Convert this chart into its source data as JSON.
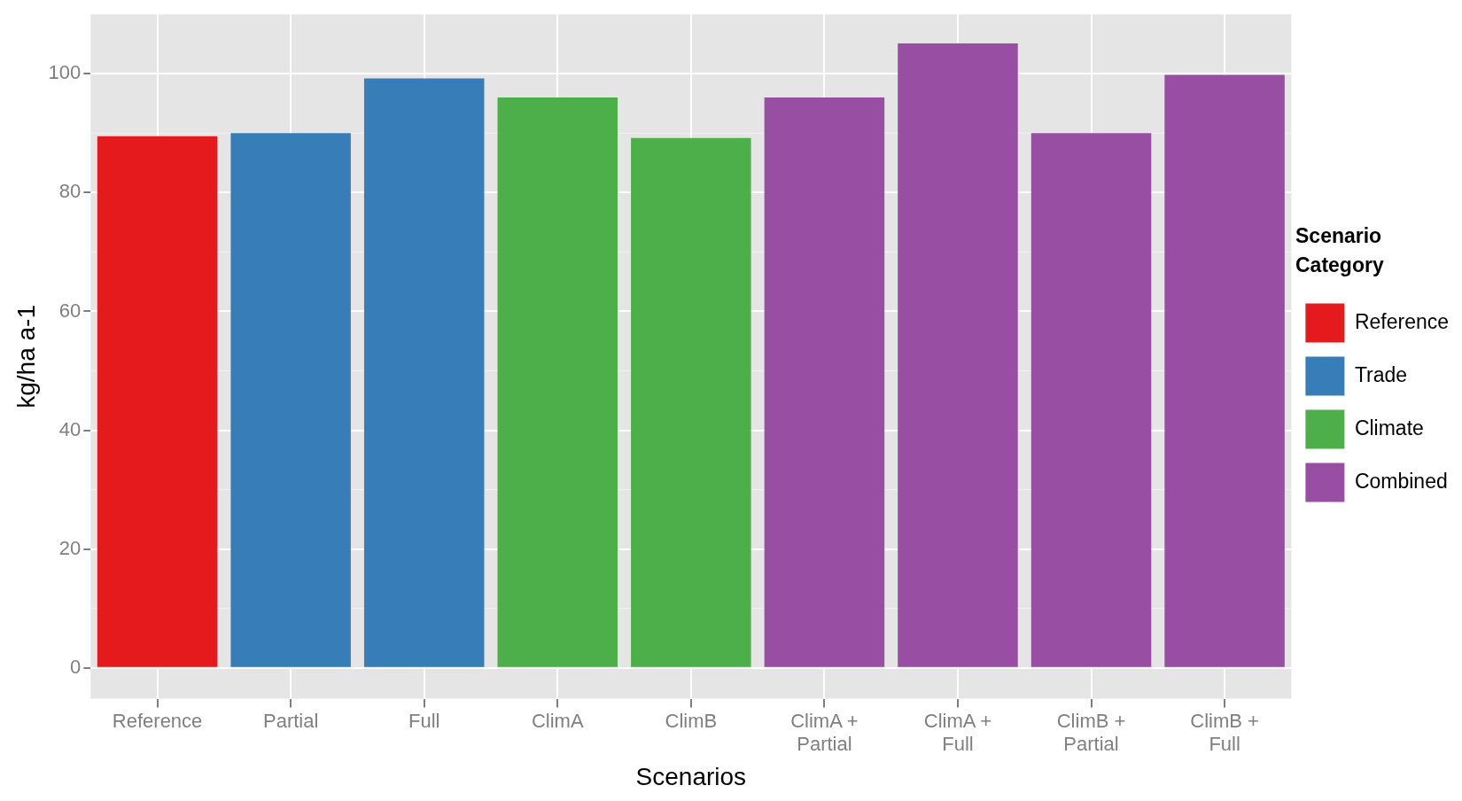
{
  "chart_data": {
    "type": "bar",
    "xlabel": "Scenarios",
    "ylabel": "kg/ha a-1",
    "legend_title": "Scenario Category",
    "categories": [
      "Reference",
      "Partial",
      "Full",
      "ClimA",
      "ClimB",
      "ClimA + Partial",
      "ClimA + Full",
      "ClimB + Partial",
      "ClimB + Full"
    ],
    "series": [
      {
        "name": "Reference",
        "color": "#e41a1c",
        "values": [
          89.5,
          null,
          null,
          null,
          null,
          null,
          null,
          null,
          null
        ]
      },
      {
        "name": "Trade",
        "color": "#377eb8",
        "values": [
          null,
          90.0,
          99.2,
          null,
          null,
          null,
          null,
          null,
          null
        ]
      },
      {
        "name": "Climate",
        "color": "#4daf4a",
        "values": [
          null,
          null,
          null,
          96.0,
          89.2,
          null,
          null,
          null,
          null
        ]
      },
      {
        "name": "Combined",
        "color": "#984ea3",
        "values": [
          null,
          null,
          null,
          null,
          null,
          96.0,
          105.1,
          90.0,
          99.8
        ]
      }
    ],
    "ylim": [
      -5.2,
      110
    ],
    "yticks": [
      0,
      20,
      40,
      60,
      80,
      100
    ],
    "grid": true,
    "legend": "right"
  }
}
